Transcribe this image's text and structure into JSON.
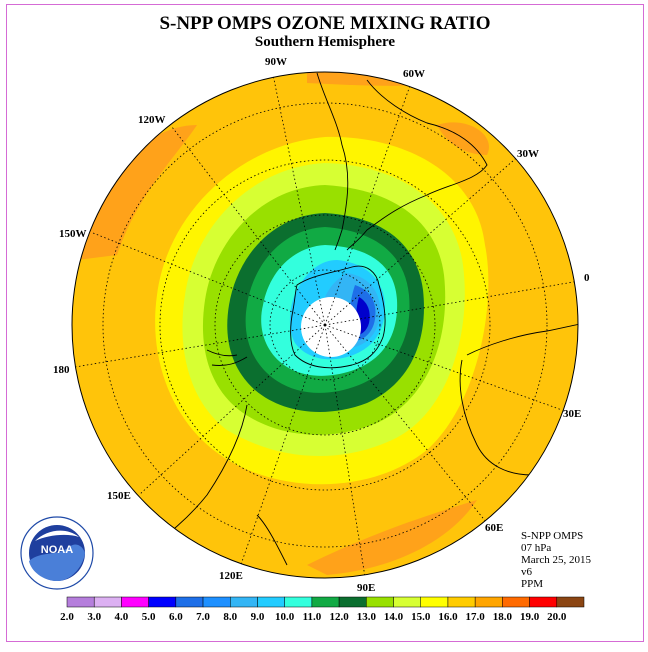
{
  "title": "S-NPP OMPS OZONE MIXING RATIO",
  "subtitle": "Southern Hemisphere",
  "lon_labels": {
    "90w": "90W",
    "60w": "60W",
    "30w": "30W",
    "0": "0",
    "30e": "30E",
    "60e": "60E",
    "90e": "90E",
    "120e": "120E",
    "150e": "150E",
    "180": "180",
    "150w": "150W",
    "120w": "120W"
  },
  "info": {
    "instrument": "S-NPP OMPS",
    "level": "07 hPa",
    "date": "March 25, 2015",
    "version": "v6",
    "units": "PPM"
  },
  "logo_text": "NOAA",
  "colorbar": {
    "labels": [
      "2.0",
      "3.0",
      "4.0",
      "5.0",
      "6.0",
      "7.0",
      "8.0",
      "9.0",
      "10.0",
      "11.0",
      "12.0",
      "13.0",
      "14.0",
      "15.0",
      "16.0",
      "17.0",
      "18.0",
      "19.0",
      "20.0"
    ],
    "colors": [
      "#b57edc",
      "#dcb0f2",
      "#ff00ff",
      "#0000ff",
      "#1e6fe8",
      "#1e90ff",
      "#33b5f5",
      "#22ccff",
      "#33ffdd",
      "#11aa44",
      "#0b6f2f",
      "#99e000",
      "#d7ff33",
      "#ffff00",
      "#ffcc00",
      "#ffa500",
      "#ff6a00",
      "#ff0000",
      "#8b4513"
    ]
  },
  "colors": {
    "frame": "#d56bd5",
    "background_field": "#ffc40a",
    "hole_white": "#ffffff"
  }
}
